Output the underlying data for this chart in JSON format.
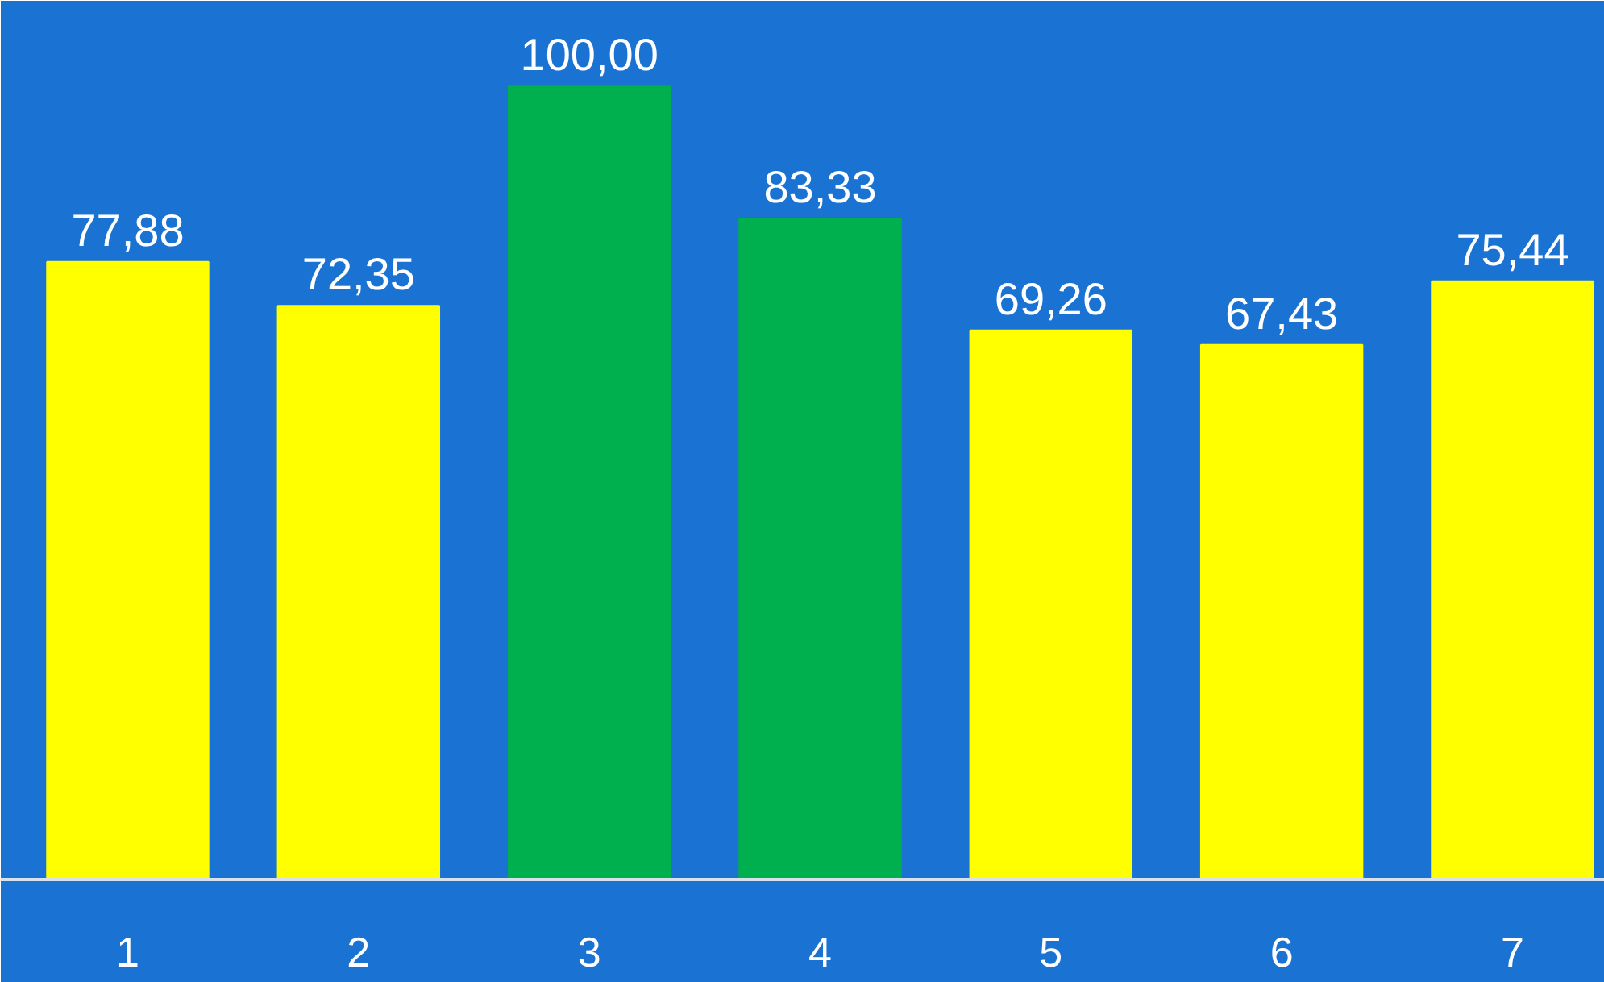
{
  "chart_data": {
    "type": "bar",
    "categories": [
      "1",
      "2",
      "3",
      "4",
      "5",
      "6",
      "7"
    ],
    "values": [
      77.88,
      72.35,
      100.0,
      83.33,
      69.26,
      67.43,
      75.44
    ],
    "colors": [
      "#ffff00",
      "#ffff00",
      "#00b04f",
      "#00b04f",
      "#ffff00",
      "#ffff00",
      "#ffff00"
    ],
    "value_labels": [
      "77,88",
      "72,35",
      "100,00",
      "83,33",
      "69,26",
      "67,43",
      "75,44"
    ],
    "grid": false
  }
}
